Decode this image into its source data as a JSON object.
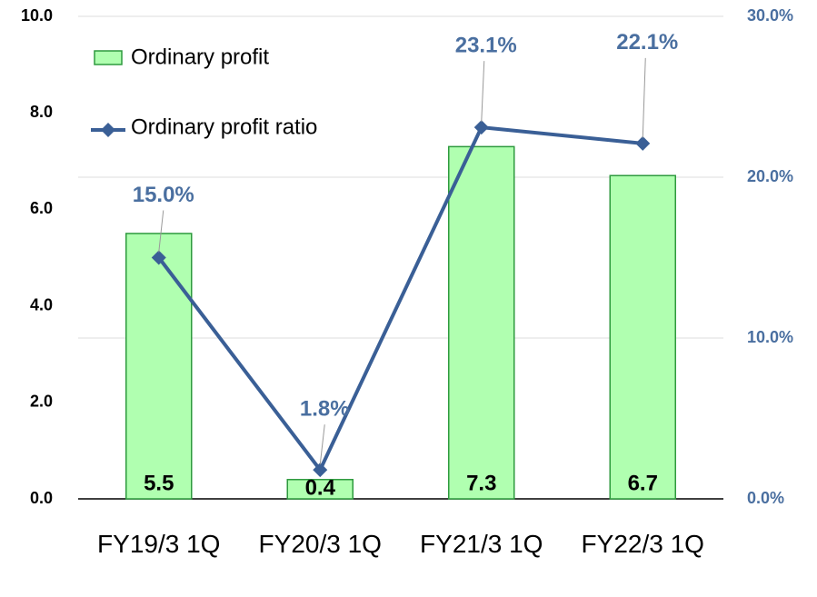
{
  "chart_data": {
    "type": "bar",
    "categories": [
      "FY19/3 1Q",
      "FY20/3 1Q",
      "FY21/3 1Q",
      "FY22/3 1Q"
    ],
    "series": [
      {
        "name": "Ordinary profit",
        "type": "bar",
        "color": "#b0ffb0",
        "values": [
          5.5,
          0.4,
          7.3,
          6.7
        ]
      },
      {
        "name": "Ordinary profit ratio",
        "type": "line",
        "axis": "y2",
        "color": "#3a5f96",
        "values": [
          15.0,
          1.8,
          23.1,
          22.1
        ],
        "value_labels": [
          "15.0%",
          "1.8%",
          "23.1%",
          "22.1%"
        ]
      }
    ],
    "ylim": [
      0,
      10
    ],
    "yticks": [
      {
        "value": 0,
        "label": "0.0"
      },
      {
        "value": 2,
        "label": "2.0"
      },
      {
        "value": 4,
        "label": "4.0"
      },
      {
        "value": 6,
        "label": "6.0"
      },
      {
        "value": 8,
        "label": "8.0"
      },
      {
        "value": 10,
        "label": "10.0"
      }
    ],
    "y2lim": [
      0,
      30
    ],
    "y2ticks": [
      {
        "value": 0,
        "label": "0.0%"
      },
      {
        "value": 10,
        "label": "10.0%"
      },
      {
        "value": 20,
        "label": "20.0%"
      },
      {
        "value": 30,
        "label": "30.0%"
      }
    ],
    "grid": true
  }
}
